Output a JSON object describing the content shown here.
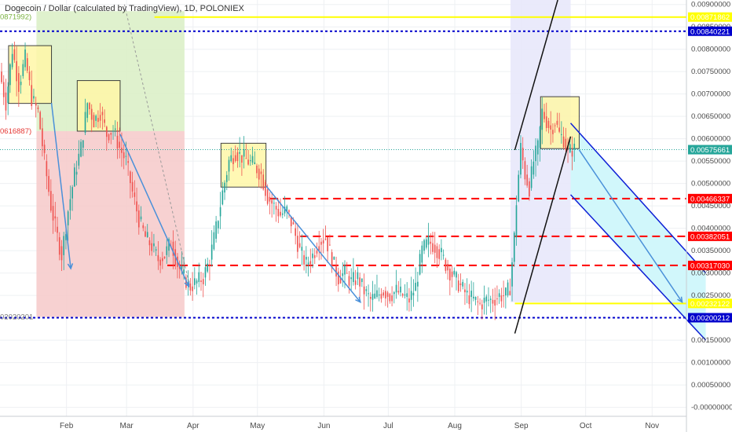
{
  "header": {
    "title": "Dogecoin / Dollar (calculated by TradingView), 1D, POLONIEX"
  },
  "chart_data": {
    "type": "candlestick",
    "title": "Dogecoin / Dollar (calculated by TradingView), 1D, POLONIEX",
    "xlabel": "",
    "ylabel": "",
    "x_ticks": [
      {
        "label": "Feb",
        "day": 31
      },
      {
        "label": "Mar",
        "day": 59
      },
      {
        "label": "Apr",
        "day": 90
      },
      {
        "label": "May",
        "day": 120
      },
      {
        "label": "Jun",
        "day": 151
      },
      {
        "label": "Jul",
        "day": 181
      },
      {
        "label": "Aug",
        "day": 212
      },
      {
        "label": "Sep",
        "day": 243
      },
      {
        "label": "Oct",
        "day": 273
      },
      {
        "label": "Nov",
        "day": 304
      }
    ],
    "y_ticks": [
      "0.00900000",
      "0.00850000",
      "0.00800000",
      "0.00750000",
      "0.00700000",
      "0.00650000",
      "0.00600000",
      "0.00550000",
      "0.00500000",
      "0.00450000",
      "0.00400000",
      "0.00350000",
      "0.00300000",
      "0.00250000",
      "0.00200000",
      "0.00150000",
      "0.00100000",
      "0.00050000",
      "-0.00000000"
    ],
    "ylim": [
      -0.0002,
      0.0091
    ],
    "x_range_days": [
      0,
      320
    ],
    "price_line": {
      "value": 0.00575661,
      "label": "0.00575661",
      "color": "#26a69a"
    },
    "horizontal_levels": [
      {
        "label": "0.00871862",
        "value": 0.00871862,
        "color": "#ffff00",
        "style": "solid",
        "text_color": "#555555"
      },
      {
        "label": "0.00840221",
        "value": 0.00840221,
        "color": "#0000cc",
        "style": "dotted",
        "text_color": "#ffffff"
      },
      {
        "label": "0.00466337",
        "value": 0.00466337,
        "color": "#ff0000",
        "style": "dashed",
        "text_color": "#ffffff"
      },
      {
        "label": "0.00382051",
        "value": 0.00382051,
        "color": "#ff0000",
        "style": "dashed",
        "text_color": "#ffffff"
      },
      {
        "label": "0.00317030",
        "value": 0.0031703,
        "color": "#ff0000",
        "style": "dashed",
        "text_color": "#ffffff"
      },
      {
        "label": "0.00232122",
        "value": 0.00232122,
        "color": "#ffff00",
        "style": "solid",
        "text_color": "#555555"
      },
      {
        "label": "0.00200212",
        "value": 0.00200212,
        "color": "#0000cc",
        "style": "dotted",
        "text_color": "#ffffff"
      }
    ],
    "side_labels": [
      {
        "label": "0871992)",
        "value": 0.00871992,
        "color": "#7cb342"
      },
      {
        "label": "0616887)",
        "value": 0.00616887,
        "color": "#e53935"
      },
      {
        "label": "02020201",
        "value": 0.0020202,
        "color": "#777777"
      }
    ],
    "price_path": [
      [
        0,
        0.0075
      ],
      [
        3,
        0.0068
      ],
      [
        6,
        0.008
      ],
      [
        9,
        0.0072
      ],
      [
        12,
        0.0078
      ],
      [
        15,
        0.0069
      ],
      [
        18,
        0.0066
      ],
      [
        21,
        0.0055
      ],
      [
        24,
        0.0045
      ],
      [
        27,
        0.0038
      ],
      [
        29,
        0.0034
      ],
      [
        32,
        0.0044
      ],
      [
        35,
        0.0052
      ],
      [
        38,
        0.0058
      ],
      [
        41,
        0.0068
      ],
      [
        44,
        0.0064
      ],
      [
        47,
        0.0066
      ],
      [
        50,
        0.0061
      ],
      [
        53,
        0.0062
      ],
      [
        56,
        0.0058
      ],
      [
        59,
        0.0055
      ],
      [
        62,
        0.0048
      ],
      [
        65,
        0.0042
      ],
      [
        68,
        0.0038
      ],
      [
        71,
        0.0036
      ],
      [
        74,
        0.0033
      ],
      [
        77,
        0.0034
      ],
      [
        80,
        0.0037
      ],
      [
        83,
        0.0032
      ],
      [
        86,
        0.0029
      ],
      [
        89,
        0.0027
      ],
      [
        92,
        0.0028
      ],
      [
        95,
        0.0029
      ],
      [
        98,
        0.0033
      ],
      [
        101,
        0.004
      ],
      [
        104,
        0.0048
      ],
      [
        107,
        0.0055
      ],
      [
        110,
        0.0057
      ],
      [
        113,
        0.0056
      ],
      [
        116,
        0.0055
      ],
      [
        119,
        0.0054
      ],
      [
        122,
        0.0052
      ],
      [
        125,
        0.0047
      ],
      [
        128,
        0.0045
      ],
      [
        131,
        0.0043
      ],
      [
        134,
        0.0044
      ],
      [
        137,
        0.004
      ],
      [
        140,
        0.0035
      ],
      [
        143,
        0.0032
      ],
      [
        146,
        0.0034
      ],
      [
        149,
        0.0037
      ],
      [
        152,
        0.0038
      ],
      [
        155,
        0.0033
      ],
      [
        158,
        0.0029
      ],
      [
        161,
        0.003
      ],
      [
        164,
        0.0028
      ],
      [
        167,
        0.0029
      ],
      [
        170,
        0.0026
      ],
      [
        173,
        0.0024
      ],
      [
        176,
        0.0025
      ],
      [
        179,
        0.0026
      ],
      [
        182,
        0.0025
      ],
      [
        185,
        0.0026
      ],
      [
        188,
        0.0025
      ],
      [
        191,
        0.0024
      ],
      [
        194,
        0.0027
      ],
      [
        197,
        0.0035
      ],
      [
        200,
        0.0037
      ],
      [
        203,
        0.0036
      ],
      [
        206,
        0.0034
      ],
      [
        209,
        0.0031
      ],
      [
        212,
        0.0029
      ],
      [
        215,
        0.0027
      ],
      [
        218,
        0.0025
      ],
      [
        221,
        0.0024
      ],
      [
        224,
        0.0023
      ],
      [
        227,
        0.0024
      ],
      [
        230,
        0.0024
      ],
      [
        233,
        0.0025
      ],
      [
        236,
        0.0025
      ],
      [
        238,
        0.0027
      ],
      [
        240,
        0.0038
      ],
      [
        241,
        0.0046
      ],
      [
        243,
        0.0058
      ],
      [
        245,
        0.0052
      ],
      [
        247,
        0.0049
      ],
      [
        249,
        0.0055
      ],
      [
        251,
        0.0058
      ],
      [
        253,
        0.0066
      ],
      [
        255,
        0.0064
      ],
      [
        257,
        0.0062
      ],
      [
        259,
        0.0064
      ],
      [
        261,
        0.0061
      ],
      [
        263,
        0.006
      ],
      [
        265,
        0.0057
      ],
      [
        267,
        0.00576
      ]
    ]
  }
}
